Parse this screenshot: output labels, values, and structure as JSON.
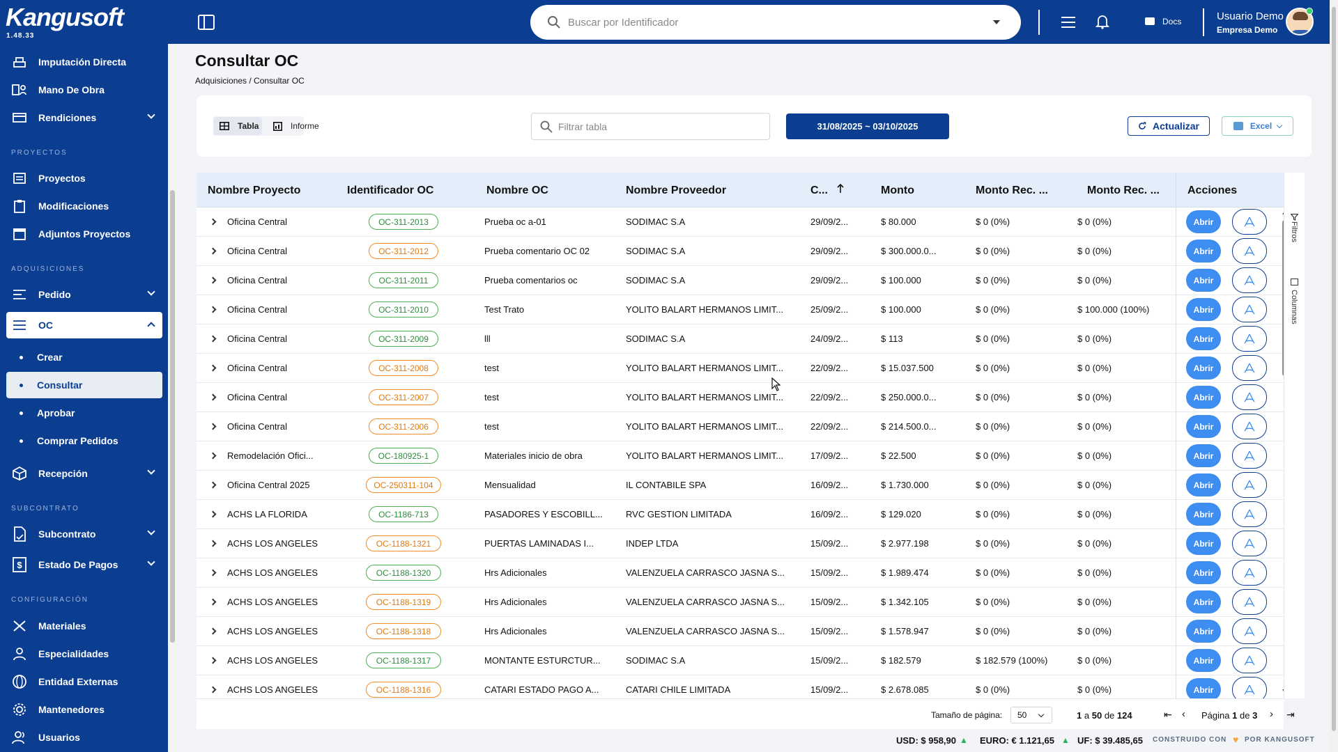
{
  "app": {
    "name": "Kangusoft",
    "version": "1.48.33"
  },
  "header": {
    "search_placeholder": "Buscar por Identificador",
    "docs_label": "Docs",
    "user_name": "Usuario Demo",
    "company": "Empresa Demo"
  },
  "sidebar": {
    "items_top": [
      {
        "label": "Imputación Directa",
        "icon": "cart-icon"
      },
      {
        "label": "Mano De Obra",
        "icon": "workers-icon"
      },
      {
        "label": "Rendiciones",
        "icon": "card-icon"
      }
    ],
    "section_proyectos": "PROYECTOS",
    "items_proyectos": [
      {
        "label": "Proyectos",
        "icon": "projects-icon"
      },
      {
        "label": "Modificaciones",
        "icon": "clipboard-icon"
      },
      {
        "label": "Adjuntos Proyectos",
        "icon": "box-icon"
      }
    ],
    "section_adquisiciones": "ADQUISICIONES",
    "pedido": "Pedido",
    "oc": "OC",
    "oc_sub": [
      "Crear",
      "Consultar",
      "Aprobar",
      "Comprar Pedidos"
    ],
    "recepcion": "Recepción",
    "section_subcontrato": "SUBCONTRATO",
    "subcontrato": "Subcontrato",
    "estado_pagos": "Estado De Pagos",
    "section_configuracion": "CONFIGURACIÓN",
    "items_config": [
      {
        "label": "Materiales",
        "icon": "materials-icon"
      },
      {
        "label": "Especialidades",
        "icon": "specialties-icon"
      },
      {
        "label": "Entidad Externas",
        "icon": "globe-icon"
      },
      {
        "label": "Mantenedores",
        "icon": "gear-icon"
      },
      {
        "label": "Usuarios",
        "icon": "users-icon"
      }
    ]
  },
  "page": {
    "title": "Consultar OC",
    "breadcrumb": "Adquisiciones / Consultar OC"
  },
  "toolbar": {
    "view_table": "Tabla",
    "view_report": "Informe",
    "filter_placeholder": "Filtrar tabla",
    "date_range": "31/08/2025 ~ 03/10/2025",
    "refresh": "Actualizar",
    "excel": "Excel"
  },
  "table": {
    "columns": [
      "Nombre Proyecto",
      "Identificador OC",
      "Nombre OC",
      "Nombre Proveedor",
      "C...",
      "Monto",
      "Monto Rec. ...",
      "Monto Rec. ...",
      "Acciones"
    ],
    "action_open": "Abrir",
    "rail_filters": "Filtros",
    "rail_columns": "Columnas",
    "rows": [
      {
        "proyecto": "Oficina Central",
        "id": "OC-311-2013",
        "status": "green",
        "nombre": "Prueba oc a-01",
        "proveedor": "SODIMAC S.A",
        "fecha": "29/09/2...",
        "monto": "$ 80.000",
        "rec1": "$ 0 (0%)",
        "rec2": "$ 0 (0%)"
      },
      {
        "proyecto": "Oficina Central",
        "id": "OC-311-2012",
        "status": "orange",
        "nombre": "Prueba comentario OC 02",
        "proveedor": "SODIMAC S.A",
        "fecha": "29/09/2...",
        "monto": "$ 300.000.0...",
        "rec1": "$ 0 (0%)",
        "rec2": "$ 0 (0%)"
      },
      {
        "proyecto": "Oficina Central",
        "id": "OC-311-2011",
        "status": "green",
        "nombre": "Prueba comentarios oc",
        "proveedor": "SODIMAC S.A",
        "fecha": "29/09/2...",
        "monto": "$ 100.000",
        "rec1": "$ 0 (0%)",
        "rec2": "$ 0 (0%)"
      },
      {
        "proyecto": "Oficina Central",
        "id": "OC-311-2010",
        "status": "green",
        "nombre": "Test Trato",
        "proveedor": "YOLITO BALART HERMANOS LIMIT...",
        "fecha": "25/09/2...",
        "monto": "$ 100.000",
        "rec1": "$ 0 (0%)",
        "rec2": "$ 100.000 (100%)"
      },
      {
        "proyecto": "Oficina Central",
        "id": "OC-311-2009",
        "status": "green",
        "nombre": "lll",
        "proveedor": "SODIMAC S.A",
        "fecha": "24/09/2...",
        "monto": "$ 113",
        "rec1": "$ 0 (0%)",
        "rec2": "$ 0 (0%)"
      },
      {
        "proyecto": "Oficina Central",
        "id": "OC-311-2008",
        "status": "orange",
        "nombre": "test",
        "proveedor": "YOLITO BALART HERMANOS LIMIT...",
        "fecha": "22/09/2...",
        "monto": "$ 15.037.500",
        "rec1": "$ 0 (0%)",
        "rec2": "$ 0 (0%)"
      },
      {
        "proyecto": "Oficina Central",
        "id": "OC-311-2007",
        "status": "orange",
        "nombre": "test",
        "proveedor": "YOLITO BALART HERMANOS LIMIT...",
        "fecha": "22/09/2...",
        "monto": "$ 250.000.0...",
        "rec1": "$ 0 (0%)",
        "rec2": "$ 0 (0%)"
      },
      {
        "proyecto": "Oficina Central",
        "id": "OC-311-2006",
        "status": "orange",
        "nombre": "test",
        "proveedor": "YOLITO BALART HERMANOS LIMIT...",
        "fecha": "22/09/2...",
        "monto": "$ 214.500.0...",
        "rec1": "$ 0 (0%)",
        "rec2": "$ 0 (0%)"
      },
      {
        "proyecto": "Remodelación Ofici...",
        "id": "OC-180925-1",
        "status": "green",
        "nombre": "Materiales inicio de obra",
        "proveedor": "YOLITO BALART HERMANOS LIMIT...",
        "fecha": "17/09/2...",
        "monto": "$ 22.500",
        "rec1": "$ 0 (0%)",
        "rec2": "$ 0 (0%)"
      },
      {
        "proyecto": "Oficina Central 2025",
        "id": "OC-250311-104",
        "status": "orange",
        "nombre": "Mensualidad",
        "proveedor": "IL CONTABILE SPA",
        "fecha": "16/09/2...",
        "monto": "$ 1.730.000",
        "rec1": "$ 0 (0%)",
        "rec2": "$ 0 (0%)"
      },
      {
        "proyecto": "ACHS LA FLORIDA",
        "id": "OC-1186-713",
        "status": "green",
        "nombre": "PASADORES Y ESCOBILL...",
        "proveedor": "RVC GESTION LIMITADA",
        "fecha": "16/09/2...",
        "monto": "$ 129.020",
        "rec1": "$ 0 (0%)",
        "rec2": "$ 0 (0%)"
      },
      {
        "proyecto": "ACHS LOS ANGELES",
        "id": "OC-1188-1321",
        "status": "orange",
        "nombre": "PUERTAS LAMINADAS I...",
        "proveedor": "INDEP LTDA",
        "fecha": "15/09/2...",
        "monto": "$ 2.977.198",
        "rec1": "$ 0 (0%)",
        "rec2": "$ 0 (0%)"
      },
      {
        "proyecto": "ACHS LOS ANGELES",
        "id": "OC-1188-1320",
        "status": "green",
        "nombre": "Hrs Adicionales",
        "proveedor": "VALENZUELA CARRASCO JASNA S...",
        "fecha": "15/09/2...",
        "monto": "$ 1.989.474",
        "rec1": "$ 0 (0%)",
        "rec2": "$ 0 (0%)"
      },
      {
        "proyecto": "ACHS LOS ANGELES",
        "id": "OC-1188-1319",
        "status": "orange",
        "nombre": "Hrs Adicionales",
        "proveedor": "VALENZUELA CARRASCO JASNA S...",
        "fecha": "15/09/2...",
        "monto": "$ 1.342.105",
        "rec1": "$ 0 (0%)",
        "rec2": "$ 0 (0%)"
      },
      {
        "proyecto": "ACHS LOS ANGELES",
        "id": "OC-1188-1318",
        "status": "orange",
        "nombre": "Hrs Adicionales",
        "proveedor": "VALENZUELA CARRASCO JASNA S...",
        "fecha": "15/09/2...",
        "monto": "$ 1.578.947",
        "rec1": "$ 0 (0%)",
        "rec2": "$ 0 (0%)"
      },
      {
        "proyecto": "ACHS LOS ANGELES",
        "id": "OC-1188-1317",
        "status": "green",
        "nombre": "MONTANTE ESTURCTUR...",
        "proveedor": "SODIMAC S.A",
        "fecha": "15/09/2...",
        "monto": "$ 182.579",
        "rec1": "$ 182.579 (100%)",
        "rec2": "$ 0 (0%)"
      },
      {
        "proyecto": "ACHS LOS ANGELES",
        "id": "OC-1188-1316",
        "status": "orange",
        "nombre": "CATARI ESTADO PAGO A...",
        "proveedor": "CATARI CHILE LIMITADA",
        "fecha": "15/09/2...",
        "monto": "$ 2.678.085",
        "rec1": "$ 0 (0%)",
        "rec2": "$ 0 (0%)"
      }
    ]
  },
  "pager": {
    "page_size_label": "Tamaño de página:",
    "page_size": "50",
    "range_from": "1",
    "range_word": "a",
    "range_to": "50",
    "of_word": "de",
    "total": "124",
    "page_word": "Página",
    "page": "1",
    "pages": "3"
  },
  "footer": {
    "usd": "USD: $ 958,90",
    "euro": "EURO: € 1.121,65",
    "uf": "UF: $ 39.485,65",
    "built_by": "CONSTRUIDO CON",
    "built_by_2": "POR KANGUSOFT"
  },
  "colors": {
    "brand": "#0b3d91",
    "accent": "#3d8ef0",
    "status_green": "#4caf50",
    "status_orange": "#f28c28"
  }
}
